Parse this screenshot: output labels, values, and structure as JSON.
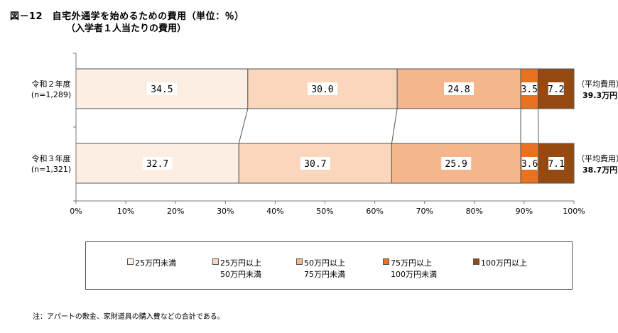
{
  "title": "図－12　自宅外通学を始めるための費用（単位：％）",
  "subtitle": "（入学者１人当たりの費用）",
  "note": "注：アパートの敷金、家財道具の購入費などの合計である。",
  "colors": [
    "#fdeee4",
    "#f9d6bc",
    "#f5b68e",
    "#e8721f",
    "#954a12"
  ],
  "chart_data": {
    "type": "bar",
    "orientation": "horizontal",
    "stacked": "percent",
    "categories": [
      {
        "label": "令和２年度",
        "n": "(n=1,289)",
        "avg_label": "（平均費用）",
        "avg_value": "39.3万円"
      },
      {
        "label": "令和３年度",
        "n": "(n=1,321)",
        "avg_label": "（平均費用）",
        "avg_value": "38.7万円"
      }
    ],
    "series": [
      {
        "name": "25万円未満",
        "values": [
          34.5,
          32.7
        ],
        "labels": [
          "34.5",
          "32.7"
        ]
      },
      {
        "name": "25万円以上\n50万円未満",
        "values": [
          30.0,
          30.7
        ],
        "labels": [
          "30.0",
          "30.7"
        ]
      },
      {
        "name": "50万円以上\n75万円未満",
        "values": [
          24.8,
          25.9
        ],
        "labels": [
          "24.8",
          "25.9"
        ]
      },
      {
        "name": "75万円以上\n100万円未満",
        "values": [
          3.5,
          3.6
        ],
        "labels": [
          "3.5",
          "3.6"
        ]
      },
      {
        "name": "100万円以上",
        "values": [
          7.2,
          7.1
        ],
        "labels": [
          "7.2",
          "7.1"
        ]
      }
    ],
    "xlim": [
      0,
      100
    ],
    "xticks": [
      "0%",
      "10%",
      "20%",
      "30%",
      "40%",
      "50%",
      "60%",
      "70%",
      "80%",
      "90%",
      "100%"
    ],
    "legend_position": "bottom",
    "grid": false
  }
}
